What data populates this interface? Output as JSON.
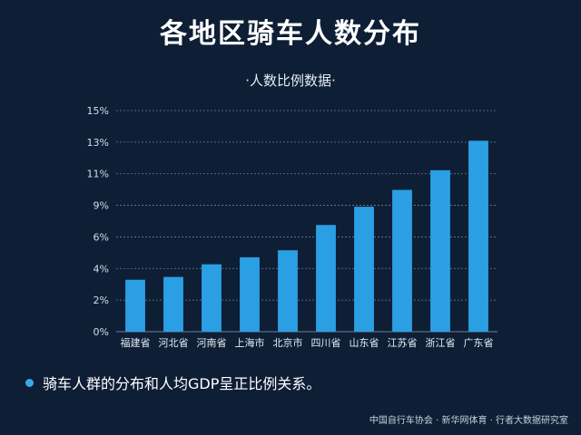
{
  "title": "各地区骑车人数分布",
  "subtitle": "·人数比例数据·",
  "note": "骑车人群的分布和人均GDP呈正比例关系。",
  "source": "中国自行车协会 · 新华网体育 · 行者大数据研究室",
  "colors": {
    "bar": "#2b9fe3",
    "background": "#0d1e35",
    "grid": "#6f7f92"
  },
  "chart_data": {
    "type": "bar",
    "title": "各地区骑车人数分布",
    "subtitle": "·人数比例数据·",
    "categories": [
      "福建省",
      "河北省",
      "河南省",
      "上海市",
      "北京市",
      "四川省",
      "山东省",
      "江苏省",
      "浙江省",
      "广东省"
    ],
    "values": [
      3.7,
      3.9,
      4.8,
      5.3,
      5.8,
      7.6,
      8.9,
      10.1,
      11.5,
      13.6
    ],
    "yticks": [
      "0%",
      "2%",
      "4%",
      "6%",
      "9%",
      "11%",
      "13%",
      "15%"
    ],
    "ylim": [
      0,
      15.75
    ],
    "grid": true,
    "legend": "none"
  }
}
